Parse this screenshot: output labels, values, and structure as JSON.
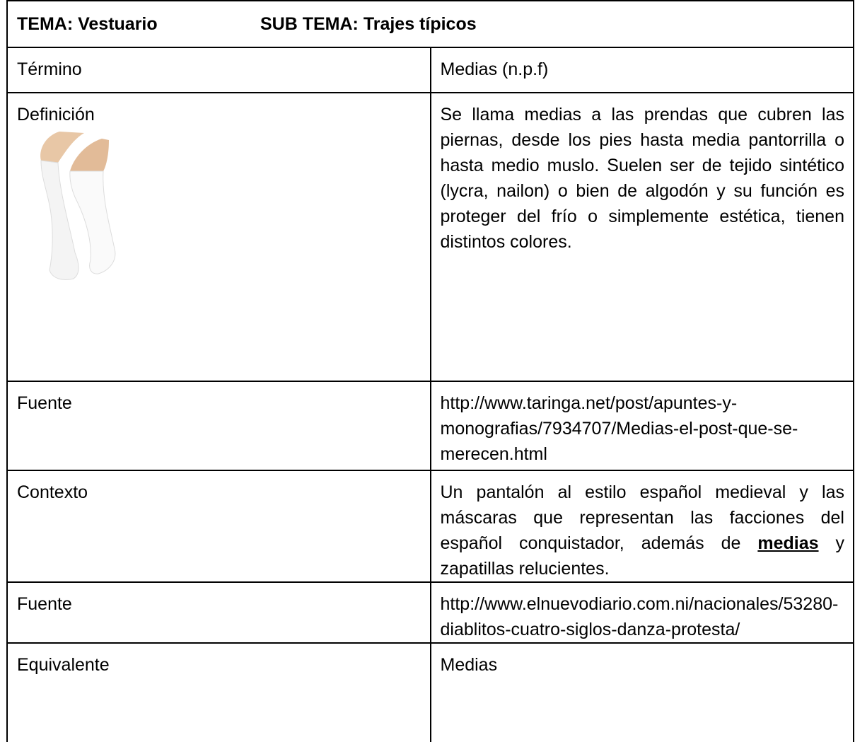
{
  "header": {
    "tema": "TEMA: Vestuario",
    "subtema": "SUB TEMA: Trajes típicos"
  },
  "rows": [
    {
      "label": "Término",
      "content": "Medias  (n.p.f)"
    },
    {
      "label": "Definición",
      "content": "Se llama medias a las prendas que cubren las piernas, desde los pies hasta media pantorrilla o hasta medio muslo. Suelen ser de tejido sintético (lycra, nailon) o bien de algodón y su función es proteger del frío o simplemente estética, tienen distintos colores."
    },
    {
      "label": "Fuente",
      "content": "http://www.taringa.net/post/apuntes-y-monografias/7934707/Medias-el-post-que-se-merecen.html"
    },
    {
      "label": "Contexto",
      "content_before": "Un pantalón al estilo español medieval y las máscaras que representan las facciones del español conquistador, además de",
      "content_emphasis": "medias",
      "content_after": "y zapatillas relucientes."
    },
    {
      "label": "Fuente",
      "content": "http://www.elnuevodiario.com.ni/nacionales/53280-diablitos-cuatro-siglos-danza-protesta/"
    },
    {
      "label": "Equivalente",
      "content": "Medias"
    }
  ]
}
